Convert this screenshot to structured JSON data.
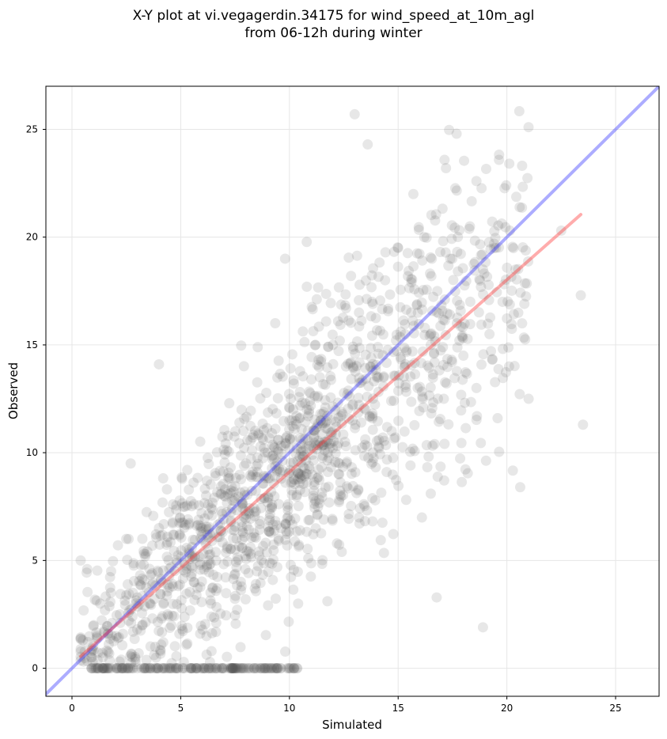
{
  "chart_data": {
    "type": "scatter",
    "title_line1": "X-Y plot at vi.vegagerdin.34175 for wind_speed_at_10m_agl",
    "title_line2": "from 06-12h during winter",
    "xlabel": "Simulated",
    "ylabel": "Observed",
    "xlim": [
      -1.2,
      27
    ],
    "ylim": [
      -1.3,
      27
    ],
    "xticks": [
      0,
      5,
      10,
      15,
      20,
      25
    ],
    "yticks": [
      0,
      5,
      10,
      15,
      20,
      25
    ],
    "grid": true,
    "point_color": "#555555",
    "point_alpha": 0.14,
    "identity_line": {
      "color": "#3a3aff",
      "x": [
        -1.2,
        27
      ],
      "y": [
        -1.2,
        27
      ]
    },
    "fit_line": {
      "color": "#ff3a3a",
      "x": [
        0.4,
        23.4
      ],
      "y": [
        0.55,
        21.05
      ]
    },
    "cloud_description_series": [
      {
        "name": "",
        "x": [
          0.4,
          0.5,
          0.7,
          1.0,
          1.3,
          1.8,
          2.2,
          2.5,
          2.8,
          3.0,
          3.3,
          3.6,
          4.0,
          4.4,
          4.8,
          5.2,
          5.6,
          6.0,
          6.4,
          7.0,
          7.5,
          8.0,
          8.5,
          9.0,
          9.5,
          10.0,
          10.4,
          0.9,
          1.2,
          1.5,
          1.8,
          2.1,
          2.4,
          2.7,
          3.0,
          3.3,
          3.6,
          3.9,
          4.2,
          4.5,
          4.8,
          5.1,
          5.4,
          5.7,
          6.0,
          6.3,
          6.6,
          6.9,
          7.2,
          7.5,
          7.8,
          8.1,
          8.4,
          8.7,
          9.0,
          9.3,
          9.6,
          9.9,
          10.2,
          10.5,
          10.8,
          11.1,
          11.4,
          11.7,
          12.0,
          12.3,
          12.6,
          12.9,
          13.2,
          13.5,
          13.8,
          14.1,
          14.4,
          14.7,
          15.0,
          15.3,
          15.6,
          15.9,
          16.2,
          16.5,
          16.8,
          17.1,
          17.4,
          17.7,
          18.0,
          18.3,
          18.6,
          18.9,
          19.2,
          19.5,
          19.8,
          20.1,
          20.4,
          20.7,
          21.0,
          22.5,
          23.4,
          23.5,
          13.0,
          13.6,
          4.0,
          2.7,
          9.8,
          10.8,
          15.7,
          18.6,
          18.9,
          17.2,
          16.5
        ],
        "y": [
          5.0,
          1.3,
          4.6,
          2.0,
          3.0,
          4.5,
          2.5,
          6.0,
          3.5,
          1.8,
          4.8,
          3.0,
          6.5,
          2.5,
          5.0,
          7.5,
          4.0,
          6.5,
          3.0,
          8.0,
          5.5,
          9.5,
          4.5,
          10.0,
          6.0,
          11.5,
          3.0,
          0,
          0,
          0,
          0,
          0,
          0,
          0,
          0,
          0,
          0,
          0,
          0,
          0,
          0,
          0,
          0,
          0,
          0,
          0,
          0,
          0,
          0,
          0,
          0,
          0,
          0,
          0,
          0,
          0,
          0,
          0,
          0,
          9.0,
          12.0,
          8.0,
          13.5,
          10.5,
          15.0,
          9.5,
          14.0,
          11.5,
          16.5,
          12.0,
          17.0,
          13.5,
          18.0,
          11.0,
          19.5,
          14.0,
          16.5,
          13.0,
          20.0,
          15.0,
          17.5,
          12.5,
          19.0,
          16.0,
          14.5,
          20.5,
          13.0,
          18.5,
          15.5,
          19.5,
          17.0,
          14.0,
          18.5,
          16.0,
          12.5,
          20.3,
          17.3,
          11.3,
          25.7,
          24.3,
          14.1,
          9.5,
          19.0,
          17.7,
          22.0,
          22.6,
          1.9,
          23.2,
          8.1
        ]
      }
    ]
  }
}
